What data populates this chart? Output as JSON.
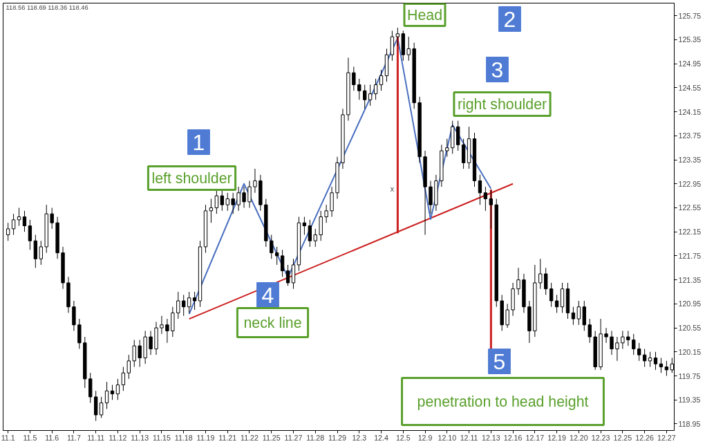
{
  "chart_data": {
    "type": "candlestick",
    "categories": [
      "11.1",
      null,
      null,
      null,
      "11.5",
      null,
      null,
      null,
      "11.6",
      null,
      null,
      null,
      "11.7",
      null,
      null,
      null,
      "11.11",
      null,
      null,
      null,
      "11.12",
      null,
      null,
      null,
      "11.13",
      null,
      null,
      null,
      "11.15",
      null,
      null,
      null,
      "11.18",
      null,
      null,
      null,
      "11.19",
      null,
      null,
      null,
      "11.21",
      null,
      null,
      null,
      "11.22",
      null,
      null,
      null,
      "11.25",
      null,
      null,
      null,
      "11.27",
      null,
      null,
      null,
      "11.28",
      null,
      null,
      null,
      "11.29",
      null,
      null,
      null,
      "12.3",
      null,
      null,
      null,
      "12.4",
      null,
      null,
      null,
      "12.5",
      null,
      null,
      null,
      "12.9",
      null,
      null,
      null,
      "12.10",
      null,
      null,
      null,
      "12.11",
      null,
      null,
      null,
      "12.13",
      null,
      null,
      null,
      "12.16",
      null,
      null,
      null,
      "12.17",
      null,
      null,
      null,
      "12.19",
      null,
      null,
      null,
      "12.20",
      null,
      null,
      null,
      "12.23",
      null,
      null,
      null,
      "12.25",
      null,
      null,
      null,
      "12.26",
      null,
      null,
      null,
      "12.27",
      null
    ],
    "ohlc": [
      [
        122.1,
        122.3,
        122.0,
        122.2
      ],
      [
        122.2,
        122.45,
        122.1,
        122.35
      ],
      [
        122.35,
        122.55,
        122.25,
        122.4
      ],
      [
        122.4,
        122.5,
        122.15,
        122.25
      ],
      [
        122.25,
        122.35,
        121.85,
        122.0
      ],
      [
        122.0,
        122.1,
        121.55,
        121.7
      ],
      [
        121.7,
        122.0,
        121.6,
        121.9
      ],
      [
        121.9,
        122.6,
        121.8,
        122.45
      ],
      [
        122.45,
        122.55,
        122.2,
        122.3
      ],
      [
        122.3,
        122.4,
        121.7,
        121.8
      ],
      [
        121.8,
        121.9,
        121.2,
        121.3
      ],
      [
        121.3,
        121.4,
        120.8,
        120.9
      ],
      [
        120.9,
        121.0,
        120.5,
        120.6
      ],
      [
        120.6,
        120.7,
        120.2,
        120.3
      ],
      [
        120.3,
        120.4,
        119.55,
        119.7
      ],
      [
        119.7,
        119.8,
        119.3,
        119.4
      ],
      [
        119.4,
        119.5,
        119.0,
        119.1
      ],
      [
        119.1,
        119.4,
        119.05,
        119.3
      ],
      [
        119.3,
        119.65,
        119.2,
        119.5
      ],
      [
        119.5,
        119.6,
        119.35,
        119.45
      ],
      [
        119.45,
        119.7,
        119.35,
        119.6
      ],
      [
        119.6,
        119.9,
        119.5,
        119.8
      ],
      [
        119.8,
        120.1,
        119.7,
        120.0
      ],
      [
        120.0,
        120.35,
        119.9,
        120.25
      ],
      [
        120.25,
        120.35,
        119.9,
        120.05
      ],
      [
        120.05,
        120.5,
        119.95,
        120.4
      ],
      [
        120.4,
        120.5,
        120.1,
        120.2
      ],
      [
        120.2,
        120.65,
        120.1,
        120.55
      ],
      [
        120.55,
        120.75,
        120.45,
        120.6
      ],
      [
        120.6,
        120.7,
        120.3,
        120.5
      ],
      [
        120.5,
        120.9,
        120.4,
        120.8
      ],
      [
        120.8,
        121.15,
        120.7,
        121.0
      ],
      [
        121.0,
        121.1,
        120.75,
        120.9
      ],
      [
        120.9,
        121.15,
        120.8,
        121.05
      ],
      [
        121.05,
        121.15,
        120.85,
        121.0
      ],
      [
        121.0,
        122.0,
        120.9,
        121.9
      ],
      [
        121.9,
        122.6,
        121.8,
        122.5
      ],
      [
        122.5,
        122.7,
        122.3,
        122.55
      ],
      [
        122.55,
        122.85,
        122.45,
        122.75
      ],
      [
        122.75,
        122.85,
        122.5,
        122.6
      ],
      [
        122.6,
        122.8,
        122.5,
        122.7
      ],
      [
        122.7,
        122.8,
        122.45,
        122.6
      ],
      [
        122.6,
        122.9,
        122.5,
        122.8
      ],
      [
        122.8,
        122.9,
        122.55,
        122.65
      ],
      [
        122.65,
        123.0,
        122.55,
        122.9
      ],
      [
        122.9,
        123.2,
        122.8,
        123.0
      ],
      [
        123.0,
        123.1,
        122.5,
        122.6
      ],
      [
        122.6,
        122.7,
        121.9,
        122.0
      ],
      [
        122.0,
        122.1,
        121.7,
        121.8
      ],
      [
        121.8,
        121.9,
        121.6,
        121.75
      ],
      [
        121.75,
        121.85,
        121.4,
        121.5
      ],
      [
        121.5,
        121.6,
        121.25,
        121.3
      ],
      [
        121.3,
        121.7,
        121.2,
        121.6
      ],
      [
        121.6,
        122.4,
        121.5,
        122.3
      ],
      [
        122.3,
        122.4,
        122.1,
        122.25
      ],
      [
        122.25,
        122.35,
        121.9,
        122.0
      ],
      [
        122.0,
        122.2,
        121.9,
        122.1
      ],
      [
        122.1,
        122.5,
        122.0,
        122.4
      ],
      [
        122.4,
        122.6,
        122.3,
        122.5
      ],
      [
        122.5,
        122.9,
        122.4,
        122.8
      ],
      [
        122.8,
        123.4,
        122.7,
        123.3
      ],
      [
        123.3,
        124.2,
        123.2,
        124.1
      ],
      [
        124.1,
        125.05,
        124.0,
        124.8
      ],
      [
        124.8,
        124.9,
        124.5,
        124.6
      ],
      [
        124.6,
        124.7,
        124.35,
        124.5
      ],
      [
        124.5,
        124.6,
        124.2,
        124.35
      ],
      [
        124.35,
        124.6,
        124.25,
        124.45
      ],
      [
        124.45,
        124.7,
        124.35,
        124.6
      ],
      [
        124.6,
        124.85,
        124.5,
        124.75
      ],
      [
        124.75,
        125.2,
        124.65,
        125.1
      ],
      [
        125.1,
        125.5,
        125.0,
        125.4
      ],
      [
        125.4,
        125.55,
        125.25,
        125.45
      ],
      [
        125.45,
        125.5,
        125.0,
        125.1
      ],
      [
        125.1,
        125.4,
        125.0,
        125.2
      ],
      [
        125.2,
        125.3,
        124.2,
        124.3
      ],
      [
        124.3,
        124.4,
        123.3,
        123.4
      ],
      [
        123.4,
        123.5,
        122.1,
        122.9
      ],
      [
        122.9,
        123.0,
        122.45,
        122.6
      ],
      [
        122.6,
        123.1,
        122.5,
        123.0
      ],
      [
        123.0,
        123.6,
        122.9,
        123.5
      ],
      [
        123.5,
        123.7,
        123.4,
        123.55
      ],
      [
        123.55,
        124.0,
        123.45,
        123.9
      ],
      [
        123.9,
        124.0,
        123.5,
        123.6
      ],
      [
        123.6,
        123.7,
        123.2,
        123.3
      ],
      [
        123.3,
        123.9,
        123.2,
        123.7
      ],
      [
        123.7,
        123.8,
        122.9,
        123.0
      ],
      [
        123.0,
        123.1,
        122.6,
        122.8
      ],
      [
        122.8,
        122.9,
        122.5,
        122.7
      ],
      [
        122.7,
        122.85,
        122.2,
        122.6
      ],
      [
        122.6,
        122.7,
        120.9,
        121.0
      ],
      [
        121.0,
        121.1,
        120.5,
        120.6
      ],
      [
        120.6,
        120.95,
        120.55,
        120.85
      ],
      [
        120.85,
        121.3,
        120.75,
        121.2
      ],
      [
        121.2,
        121.55,
        121.1,
        121.35
      ],
      [
        121.35,
        121.45,
        120.8,
        120.9
      ],
      [
        120.9,
        121.0,
        120.3,
        120.5
      ],
      [
        120.5,
        121.6,
        120.4,
        121.3
      ],
      [
        121.3,
        121.7,
        121.2,
        121.45
      ],
      [
        121.45,
        121.55,
        121.1,
        121.2
      ],
      [
        121.2,
        121.3,
        120.9,
        121.0
      ],
      [
        121.0,
        121.1,
        120.8,
        120.9
      ],
      [
        120.9,
        121.3,
        120.8,
        121.2
      ],
      [
        121.2,
        121.3,
        120.7,
        120.8
      ],
      [
        120.8,
        120.9,
        120.6,
        120.7
      ],
      [
        120.7,
        121.0,
        120.6,
        120.9
      ],
      [
        120.9,
        121.0,
        120.5,
        120.6
      ],
      [
        120.6,
        120.7,
        120.3,
        120.4
      ],
      [
        120.4,
        120.5,
        119.85,
        119.9
      ],
      [
        119.9,
        120.7,
        119.85,
        120.45
      ],
      [
        120.45,
        120.55,
        120.3,
        120.4
      ],
      [
        120.4,
        120.5,
        120.1,
        120.2
      ],
      [
        120.2,
        120.4,
        120.0,
        120.3
      ],
      [
        120.3,
        120.5,
        120.2,
        120.4
      ],
      [
        120.4,
        120.5,
        120.25,
        120.35
      ],
      [
        120.35,
        120.45,
        120.1,
        120.2
      ],
      [
        120.2,
        120.3,
        120.0,
        120.1
      ],
      [
        120.1,
        120.2,
        119.9,
        120.0
      ],
      [
        120.0,
        120.15,
        119.9,
        120.05
      ],
      [
        120.05,
        120.15,
        119.85,
        119.95
      ],
      [
        119.95,
        120.05,
        119.8,
        119.9
      ],
      [
        119.9,
        120.0,
        119.75,
        119.85
      ],
      [
        119.85,
        120.05,
        119.8,
        119.95
      ]
    ],
    "series": [
      {
        "type": "line",
        "color": "#cc1f1f",
        "values": [
          null,
          null,
          null,
          null,
          null,
          null,
          null,
          null,
          null,
          null,
          null,
          null,
          null,
          null,
          null,
          null,
          null,
          null,
          null,
          null,
          null,
          null,
          null,
          null,
          null,
          null,
          null,
          null,
          null,
          null,
          null,
          null,
          null,
          120.7,
          null,
          null,
          null,
          null,
          null,
          null,
          null,
          null,
          null,
          null,
          null,
          null,
          null,
          null,
          null,
          null,
          null,
          null,
          null,
          null,
          null,
          null,
          null,
          null,
          null,
          null,
          null,
          null,
          null,
          null,
          null,
          null,
          null,
          null,
          null,
          null,
          null,
          null,
          null,
          null,
          null,
          null,
          null,
          null,
          null,
          null,
          null,
          null,
          null,
          null,
          null,
          null,
          null,
          null,
          null,
          null,
          null,
          null,
          122.95,
          null,
          null,
          null,
          null,
          null,
          null,
          null,
          null,
          null,
          null,
          null,
          null,
          null,
          null,
          null,
          null,
          null,
          null,
          null,
          null,
          null,
          null,
          null,
          null,
          null,
          null,
          null,
          null,
          null
        ]
      },
      {
        "type": "line",
        "color": "#4a6fc0",
        "values": [
          null,
          null,
          null,
          null,
          null,
          null,
          null,
          null,
          null,
          null,
          null,
          null,
          null,
          null,
          null,
          null,
          null,
          null,
          null,
          null,
          null,
          null,
          null,
          null,
          null,
          null,
          null,
          null,
          null,
          null,
          null,
          null,
          null,
          120.78,
          null,
          null,
          null,
          null,
          null,
          null,
          null,
          null,
          null,
          122.95,
          null,
          null,
          null,
          null,
          null,
          null,
          null,
          121.39,
          null,
          null,
          null,
          null,
          null,
          null,
          null,
          null,
          null,
          null,
          null,
          null,
          null,
          null,
          null,
          null,
          null,
          null,
          null,
          125.38,
          null,
          null,
          null,
          null,
          null,
          122.36,
          null,
          null,
          null,
          123.93,
          null,
          null,
          null,
          null,
          null,
          null,
          122.87,
          null,
          null,
          null,
          null,
          null,
          null,
          null,
          null,
          null,
          null,
          null,
          null,
          null,
          null,
          null,
          null,
          null,
          null,
          null,
          null,
          null,
          null,
          null,
          null,
          null,
          null,
          null,
          null,
          null,
          null,
          null,
          null,
          null
        ]
      },
      {
        "type": "bar",
        "color": "#cc1f1f",
        "values": [
          null,
          null,
          null,
          null,
          null,
          null,
          null,
          null,
          null,
          null,
          null,
          null,
          null,
          null,
          null,
          null,
          null,
          null,
          null,
          null,
          null,
          null,
          null,
          null,
          null,
          null,
          null,
          null,
          null,
          null,
          null,
          null,
          null,
          null,
          null,
          null,
          null,
          null,
          null,
          null,
          null,
          null,
          null,
          null,
          null,
          null,
          null,
          null,
          null,
          null,
          null,
          null,
          null,
          null,
          null,
          null,
          null,
          null,
          null,
          null,
          null,
          null,
          null,
          null,
          null,
          null,
          null,
          null,
          null,
          null,
          null,
          3.32,
          null,
          null,
          null,
          null,
          null,
          null,
          null,
          null,
          null,
          null,
          null,
          null,
          null,
          null,
          null,
          null,
          3.06,
          null,
          null,
          null,
          null,
          null,
          null,
          null,
          null,
          null,
          null,
          null,
          null,
          null,
          null,
          null,
          null,
          null,
          null,
          null,
          null,
          null,
          null,
          null,
          null,
          null,
          null,
          null,
          null,
          null,
          null,
          null,
          null,
          null
        ],
        "base": [
          null,
          null,
          null,
          null,
          null,
          null,
          null,
          null,
          null,
          null,
          null,
          null,
          null,
          null,
          null,
          null,
          null,
          null,
          null,
          null,
          null,
          null,
          null,
          null,
          null,
          null,
          null,
          null,
          null,
          null,
          null,
          null,
          null,
          null,
          null,
          null,
          null,
          null,
          null,
          null,
          null,
          null,
          null,
          null,
          null,
          null,
          null,
          null,
          null,
          null,
          null,
          null,
          null,
          null,
          null,
          null,
          null,
          null,
          null,
          null,
          null,
          null,
          null,
          null,
          null,
          null,
          null,
          null,
          null,
          null,
          null,
          122.13,
          null,
          null,
          null,
          null,
          null,
          null,
          null,
          null,
          null,
          null,
          null,
          null,
          null,
          null,
          null,
          null,
          119.79,
          null,
          null,
          null,
          null,
          null,
          null,
          null,
          null,
          null,
          null,
          null,
          null,
          null,
          null,
          null,
          null,
          null,
          null,
          null,
          null,
          null,
          null,
          null,
          null,
          null,
          null,
          null,
          null,
          null,
          null,
          null,
          null,
          null
        ]
      }
    ],
    "ylim": [
      118.84,
      125.96
    ],
    "yticks": [
      118.95,
      119.35,
      119.75,
      120.15,
      120.55,
      120.95,
      121.35,
      121.75,
      122.15,
      122.55,
      122.95,
      123.35,
      123.75,
      124.15,
      124.55,
      124.95,
      125.35,
      125.75
    ],
    "grid": false,
    "annotations": [
      "118.56 118.69 118.36 118.46",
      "x",
      "1",
      "left shoulder",
      "2",
      "Head",
      "3",
      "right shoulder",
      "4",
      "neck line",
      "5",
      "penetration to head height"
    ]
  }
}
